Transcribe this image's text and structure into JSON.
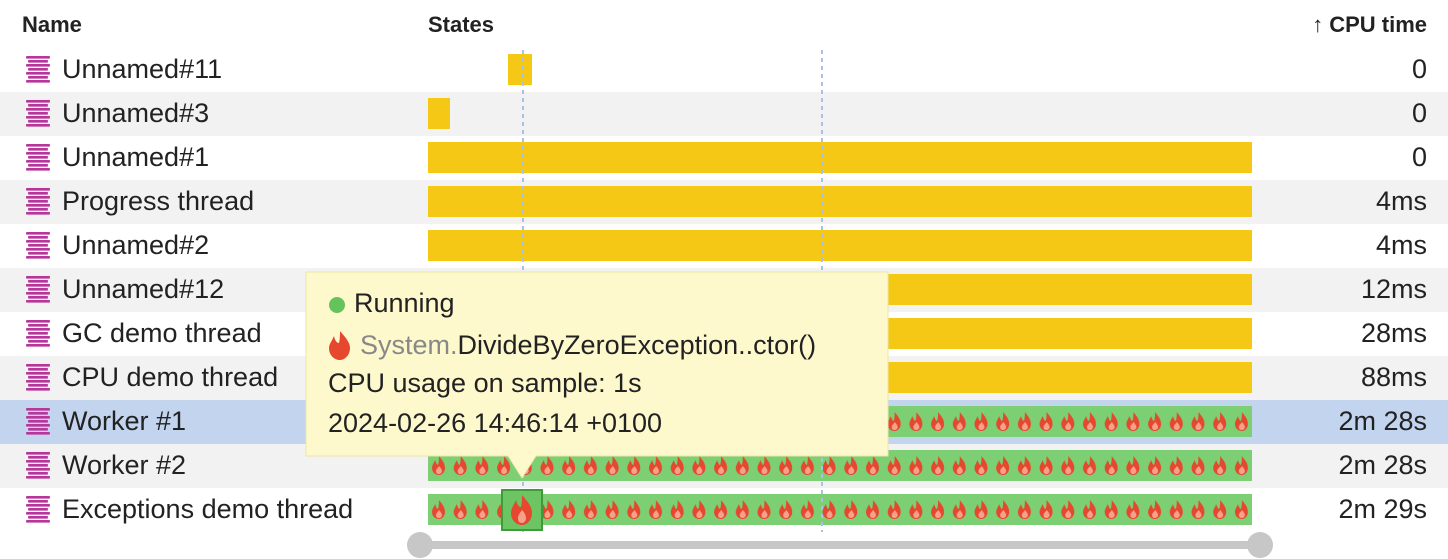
{
  "header": {
    "name": "Name",
    "states": "States",
    "sort_indicator": "↑",
    "cpu_time": "CPU time"
  },
  "rows": [
    {
      "name": "Unnamed#11",
      "cpu_time": "0"
    },
    {
      "name": "Unnamed#3",
      "cpu_time": "0"
    },
    {
      "name": "Unnamed#1",
      "cpu_time": "0"
    },
    {
      "name": "Progress thread",
      "cpu_time": "4ms"
    },
    {
      "name": "Unnamed#2",
      "cpu_time": "4ms"
    },
    {
      "name": "Unnamed#12",
      "cpu_time": "12ms"
    },
    {
      "name": "GC demo thread",
      "cpu_time": "28ms"
    },
    {
      "name": "CPU demo thread",
      "cpu_time": "88ms"
    },
    {
      "name": "Worker #1",
      "cpu_time": "2m 28s"
    },
    {
      "name": "Worker #2",
      "cpu_time": "2m 28s"
    },
    {
      "name": "Exceptions demo thread",
      "cpu_time": "2m 29s"
    }
  ],
  "tooltip": {
    "state": "Running",
    "method_namespace": "System.",
    "method": "DivideByZeroException..ctor()",
    "cpu_usage": "CPU usage on sample: 1s",
    "timestamp": "2024-02-26 14:46:14 +0100"
  }
}
